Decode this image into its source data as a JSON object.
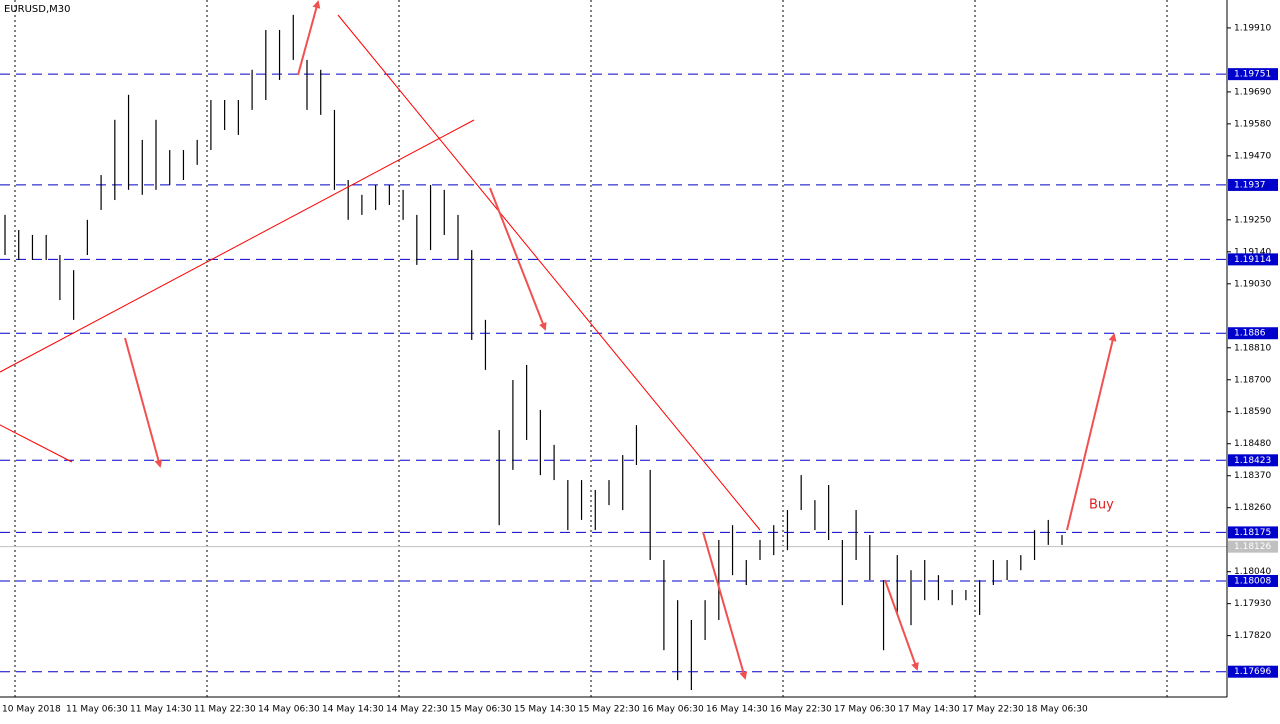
{
  "chart_data": {
    "type": "hilo",
    "title": "EURUSD,M30",
    "annotation": "Buy",
    "color": "#000000",
    "high": [
      1.19267,
      1.19215,
      1.19198,
      1.19198,
      1.19129,
      1.19077,
      1.1925,
      1.19404,
      1.19594,
      1.1968,
      1.19525,
      1.19594,
      1.1949,
      1.1949,
      1.19525,
      1.19662,
      1.19662,
      1.19662,
      1.19766,
      1.19903,
      1.19903,
      1.19955,
      1.198,
      1.19766,
      1.19628,
      1.19387,
      1.19336,
      1.1937,
      1.1937,
      1.19353,
      1.19267,
      1.1937,
      1.19353,
      1.19267,
      1.19146,
      1.18906,
      1.18527,
      1.18699,
      1.18751,
      1.18596,
      1.18476,
      1.18355,
      1.18355,
      1.18321,
      1.18355,
      1.18441,
      1.18544,
      1.1839,
      1.1808,
      1.17942,
      1.17874,
      1.17942,
      1.18149,
      1.182,
      1.1808,
      1.18149,
      1.182,
      1.18252,
      1.18372,
      1.18286,
      1.18338,
      1.18149,
      1.18252,
      1.18166,
      1.18011,
      1.18097,
      1.18045,
      1.1808,
      1.18028,
      1.17977,
      1.17977,
      1.18011,
      1.1808,
      1.1808,
      1.18097,
      1.18183,
      1.18218,
      1.18166
    ],
    "low": [
      1.19129,
      1.19112,
      1.19112,
      1.19112,
      1.18974,
      1.18906,
      1.19129,
      1.19284,
      1.19318,
      1.19353,
      1.19336,
      1.19353,
      1.1937,
      1.19387,
      1.19439,
      1.1949,
      1.19559,
      1.19542,
      1.19628,
      1.19662,
      1.19731,
      1.198,
      1.19628,
      1.19611,
      1.19353,
      1.1925,
      1.19267,
      1.19284,
      1.19301,
      1.1925,
      1.19095,
      1.19146,
      1.19198,
      1.19112,
      1.18837,
      1.18734,
      1.182,
      1.1839,
      1.18493,
      1.18372,
      1.18355,
      1.18183,
      1.18218,
      1.18183,
      1.18269,
      1.18252,
      1.18407,
      1.1808,
      1.1777,
      1.17667,
      1.17633,
      1.17805,
      1.17874,
      1.18028,
      1.17994,
      1.1808,
      1.18097,
      1.18114,
      1.18252,
      1.18183,
      1.18149,
      1.17925,
      1.1808,
      1.18011,
      1.1777,
      1.17891,
      1.17856,
      1.17942,
      1.17942,
      1.17925,
      1.17942,
      1.17891,
      1.17994,
      1.18011,
      1.18045,
      1.1808,
      1.18132,
      1.18132
    ],
    "ylim": [
      1.17609,
      1.20006
    ],
    "yticks": [
      {
        "value": 1.1991,
        "label": "1.19910"
      },
      {
        "value": 1.1969,
        "label": "1.19690"
      },
      {
        "value": 1.1958,
        "label": "1.19580"
      },
      {
        "value": 1.1947,
        "label": "1.19470"
      },
      {
        "value": 1.1925,
        "label": "1.19250"
      },
      {
        "value": 1.1914,
        "label": "1.19140"
      },
      {
        "value": 1.1903,
        "label": "1.19030"
      },
      {
        "value": 1.1881,
        "label": "1.18810"
      },
      {
        "value": 1.187,
        "label": "1.18700"
      },
      {
        "value": 1.1859,
        "label": "1.18590"
      },
      {
        "value": 1.1848,
        "label": "1.18480"
      },
      {
        "value": 1.1837,
        "label": "1.18370"
      },
      {
        "value": 1.1826,
        "label": "1.18260"
      },
      {
        "value": 1.1804,
        "label": "1.18040"
      },
      {
        "value": 1.1793,
        "label": "1.17930"
      },
      {
        "value": 1.1782,
        "label": "1.17820"
      }
    ],
    "levels": [
      1.19751,
      1.1937,
      1.19114,
      1.1886,
      1.18423,
      1.18175,
      1.18008,
      1.17696
    ],
    "level_color": "#0000cc",
    "current_price": 1.18126,
    "time_labels": [
      "10 May 2018",
      "11 May 06:30",
      "11 May 14:30",
      "11 May 22:30",
      "14 May 06:30",
      "14 May 14:30",
      "14 May 22:30",
      "15 May 06:30",
      "15 May 14:30",
      "15 May 22:30",
      "16 May 06:30",
      "16 May 14:30",
      "16 May 22:30",
      "17 May 06:30",
      "17 May 14:30",
      "17 May 22:30",
      "18 May 06:30"
    ]
  }
}
